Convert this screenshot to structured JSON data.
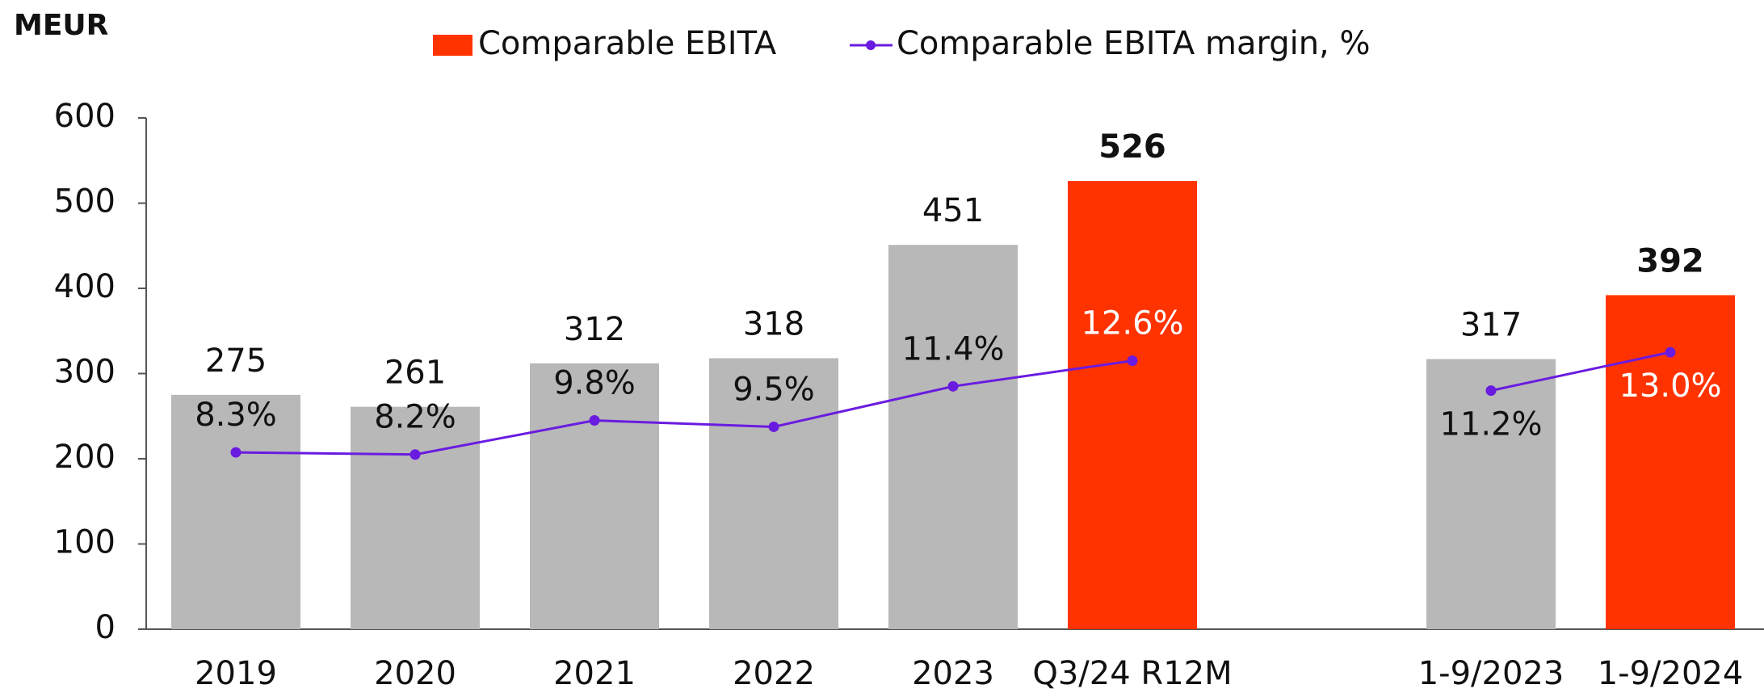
{
  "chart_data": {
    "type": "bar",
    "ylabel": "MEUR",
    "categories": [
      "2019",
      "2020",
      "2021",
      "2022",
      "2023",
      "Q3/24 R12M",
      null,
      "1-9/2023",
      "1-9/2024"
    ],
    "series": [
      {
        "name": "Comparable EBITA",
        "type": "bar",
        "color": "#ff3300",
        "colors": [
          "#b8b8b8",
          "#b8b8b8",
          "#b8b8b8",
          "#b8b8b8",
          "#b8b8b8",
          "#ff3300",
          null,
          "#b8b8b8",
          "#ff3300"
        ],
        "values": [
          275,
          261,
          312,
          318,
          451,
          526,
          null,
          317,
          392
        ]
      },
      {
        "name": "Comparable EBITA margin, %",
        "type": "line",
        "color": "#6a1be0",
        "axis": "y2",
        "values": [
          8.3,
          8.2,
          9.8,
          9.5,
          11.4,
          12.6,
          null,
          11.2,
          13.0
        ],
        "value_labels": [
          "8.3%",
          "8.2%",
          "9.8%",
          "9.5%",
          "11.4%",
          "12.6%",
          null,
          "11.2%",
          "13.0%"
        ]
      }
    ],
    "ylim": [
      0,
      600
    ],
    "yticks": [
      0,
      100,
      200,
      300,
      400,
      500,
      600
    ],
    "y2lim": [
      0,
      24
    ],
    "legend": "top"
  }
}
